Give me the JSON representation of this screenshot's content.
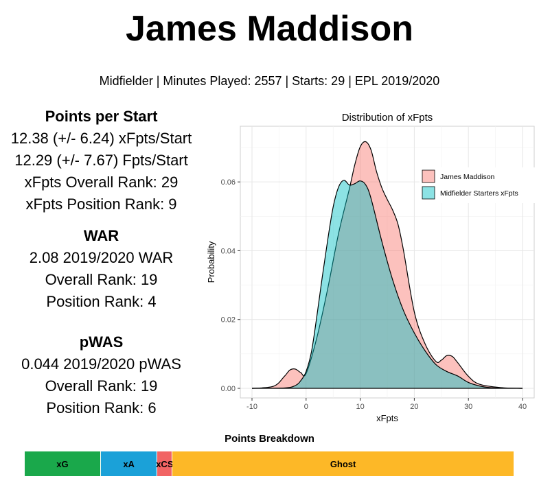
{
  "header": {
    "name": "James Maddison",
    "subtitle": "Midfielder | Minutes Played: 2557 | Starts: 29 | EPL 2019/2020"
  },
  "stats": {
    "points_per_start": {
      "title": "Points per Start",
      "xfpts_per_start": "12.38 (+/- 6.24) xFpts/Start",
      "fpts_per_start": "12.29 (+/- 7.67) Fpts/Start",
      "overall_rank": "xFpts Overall Rank: 29",
      "position_rank": "xFpts Position Rank: 9"
    },
    "war": {
      "title": "WAR",
      "value": "2.08 2019/2020 WAR",
      "overall_rank": "Overall Rank: 19",
      "position_rank": "Position Rank: 4"
    },
    "pwas": {
      "title": "pWAS",
      "value": "0.044 2019/2020 pWAS",
      "overall_rank": "Overall Rank: 19",
      "position_rank": "Position Rank: 6"
    }
  },
  "chart_data": [
    {
      "type": "area",
      "title": "Distribution of xFpts",
      "xlabel": "xFpts",
      "ylabel": "Probability",
      "xlim": [
        -10,
        40
      ],
      "ylim": [
        0,
        0.072
      ],
      "xticks": [
        -10,
        0,
        10,
        20,
        30,
        40
      ],
      "yticks": [
        0.0,
        0.02,
        0.04,
        0.06
      ],
      "ytick_labels": [
        "0.00",
        "0.02",
        "0.04",
        "0.06"
      ],
      "grid": true,
      "legend_position": "top-right",
      "series": [
        {
          "name": "James Maddison",
          "color": "#F8766D",
          "x": [
            -10,
            -6,
            -4,
            -3,
            -2,
            -1,
            0,
            2,
            4,
            6,
            8,
            9,
            10,
            11,
            12,
            13,
            14,
            15,
            16,
            17,
            18,
            20,
            22,
            24,
            25,
            26,
            27,
            28,
            30,
            32,
            36,
            40
          ],
          "y": [
            0,
            0.0006,
            0.0035,
            0.0053,
            0.0056,
            0.0046,
            0.0043,
            0.0148,
            0.029,
            0.045,
            0.058,
            0.065,
            0.0702,
            0.0717,
            0.0693,
            0.0631,
            0.0583,
            0.0549,
            0.0518,
            0.0476,
            0.0401,
            0.0222,
            0.0129,
            0.0078,
            0.0082,
            0.0095,
            0.0093,
            0.0075,
            0.0035,
            0.0012,
            0.0002,
            0
          ]
        },
        {
          "name": "Midfielder Starters xFpts",
          "color": "#00BFC4",
          "x": [
            -10,
            -4,
            -2,
            -1,
            0,
            1,
            2,
            3,
            4,
            5,
            6,
            7,
            8,
            9,
            10,
            11,
            12,
            14,
            16,
            18,
            20,
            22,
            24,
            26,
            28,
            30,
            32,
            34,
            36,
            40
          ],
          "y": [
            0,
            0.0001,
            0.0008,
            0.0022,
            0.0049,
            0.0107,
            0.0211,
            0.0325,
            0.0432,
            0.0527,
            0.0585,
            0.0605,
            0.0591,
            0.0595,
            0.0603,
            0.0592,
            0.0552,
            0.0427,
            0.0315,
            0.0226,
            0.0161,
            0.0109,
            0.0069,
            0.0049,
            0.0036,
            0.0017,
            0.0007,
            0.0002,
            0.0001,
            0
          ]
        }
      ]
    },
    {
      "type": "bar",
      "title": "Points Breakdown",
      "orientation": "horizontal-stacked",
      "categories": [
        "xG",
        "xA",
        "xCS",
        "Ghost"
      ],
      "values": [
        3.82,
        2.85,
        0.75,
        17.16
      ],
      "colors": [
        "#1AA84B",
        "#1BA1D8",
        "#F16464",
        "#FDB827"
      ]
    }
  ]
}
